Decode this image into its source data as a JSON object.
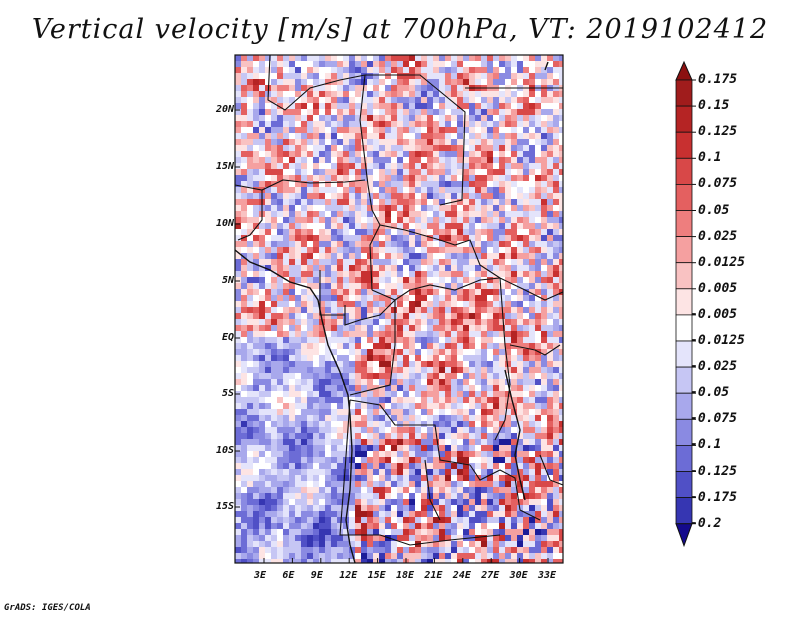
{
  "title": "Vertical velocity [m/s] at 700hPa, VT: 2019102412",
  "credit": "GrADS: IGES/COLA",
  "map": {
    "lat_range": [
      -20,
      25
    ],
    "lon_range": [
      0,
      35
    ],
    "lat_ticks": [
      "20N",
      "15N",
      "10N",
      "5N",
      "EQ",
      "5S",
      "10S",
      "15S"
    ],
    "lon_ticks": [
      "3E",
      "6E",
      "9E",
      "12E",
      "15E",
      "18E",
      "21E",
      "24E",
      "27E",
      "30E",
      "33E"
    ]
  },
  "colorbar": {
    "labels": [
      "0.175",
      "0.15",
      "0.125",
      "0.1",
      "0.075",
      "0.05",
      "0.025",
      "0.0125",
      "0.005",
      "-0.005",
      "-0.0125",
      "-0.025",
      "-0.05",
      "-0.075",
      "-0.1",
      "-0.125",
      "-0.175",
      "-0.2"
    ],
    "colors": [
      "#a01c1c",
      "#b52424",
      "#c83030",
      "#d84848",
      "#e46060",
      "#ee7e7e",
      "#f5a0a0",
      "#f9c2c2",
      "#fde4e4",
      "#ffffff",
      "#e4e4fb",
      "#c6c6f4",
      "#a8a8ec",
      "#8a8ae2",
      "#6c6cd6",
      "#5050c6",
      "#3636b2",
      "#1c1c98"
    ],
    "top_color": "#8c1010",
    "bottom_color": "#140a8c"
  }
}
